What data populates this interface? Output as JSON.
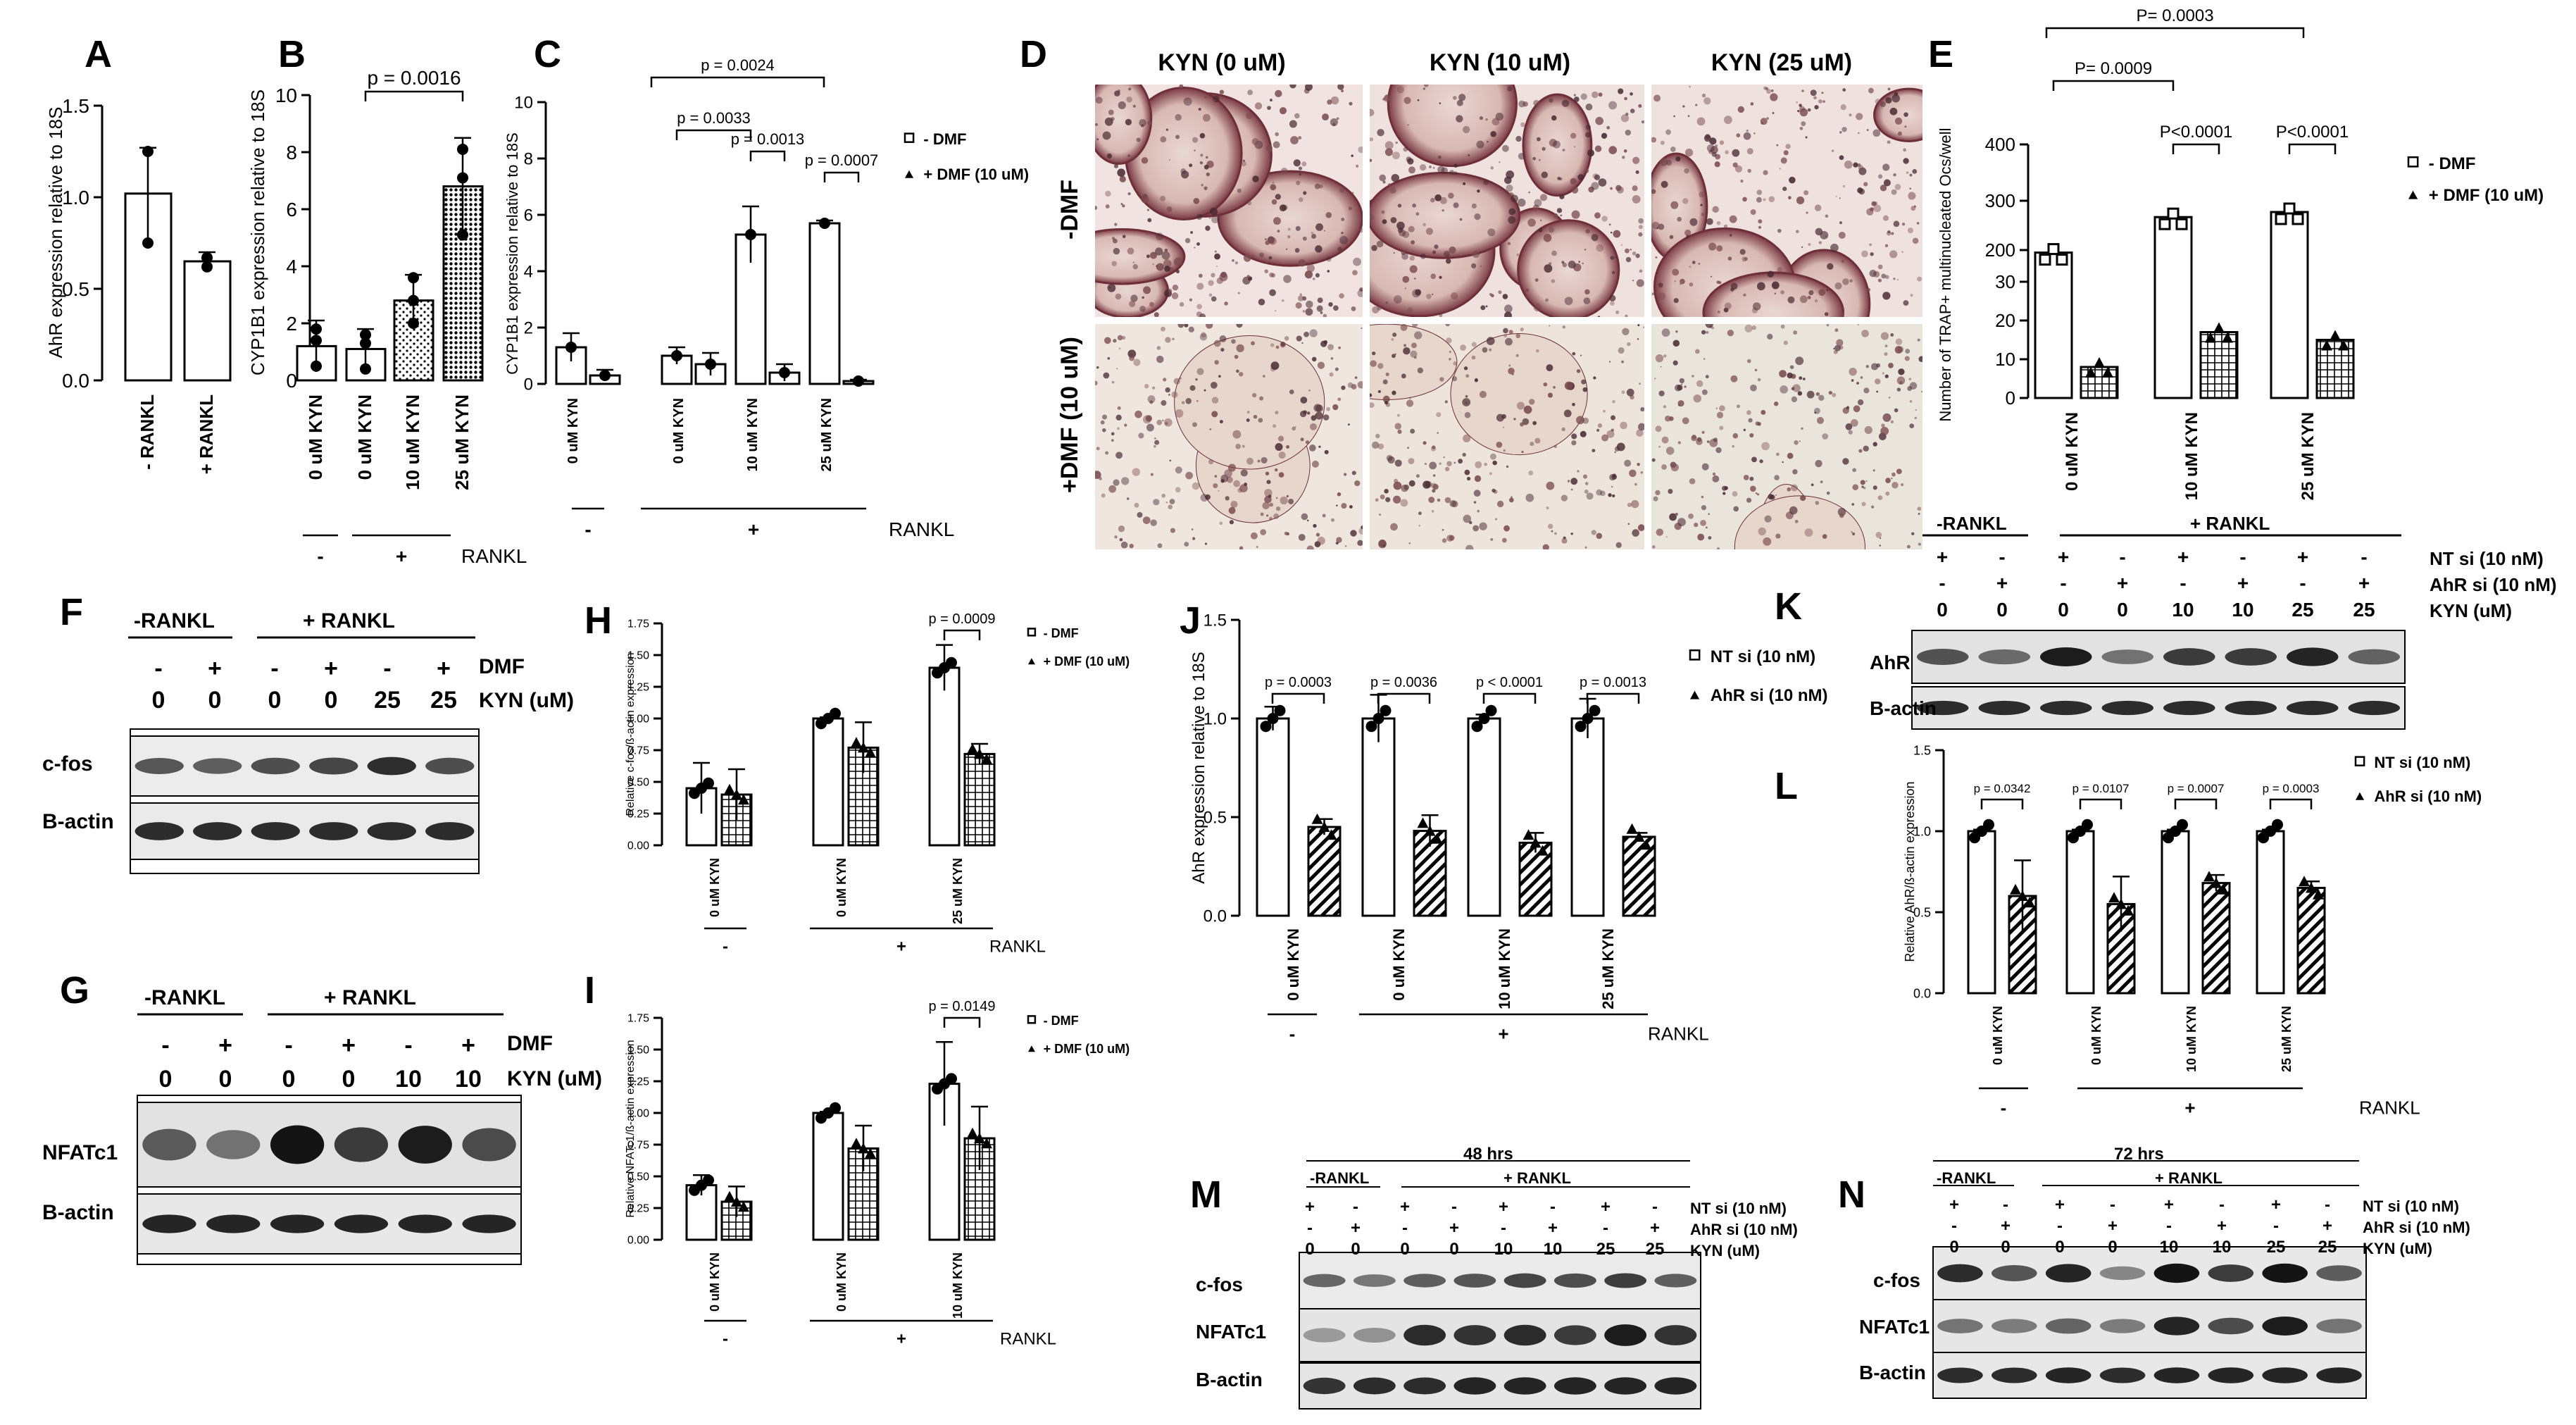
{
  "panels": {
    "A": "A",
    "B": "B",
    "C": "C",
    "D": "D",
    "E": "E",
    "F": "F",
    "G": "G",
    "H": "H",
    "I": "I",
    "J": "J",
    "K": "K",
    "L": "L",
    "M": "M",
    "N": "N"
  },
  "micro": {
    "cols": [
      "KYN (0 uM)",
      "KYN (10 uM)",
      "KYN (25 uM)"
    ],
    "rows": [
      "-DMF",
      "+DMF (10 uM)"
    ]
  },
  "blots": {
    "F": {
      "groups": [
        "-RANKL",
        "+ RANKL"
      ],
      "dmf": [
        "-",
        "+",
        "-",
        "+",
        "-",
        "+"
      ],
      "kyn": [
        "0",
        "0",
        "0",
        "0",
        "25",
        "25"
      ],
      "dmf_label": "DMF",
      "kyn_label": "KYN (uM)",
      "bands": [
        "c-fos",
        "B-actin"
      ]
    },
    "G": {
      "groups": [
        "-RANKL",
        "+ RANKL"
      ],
      "dmf": [
        "-",
        "+",
        "-",
        "+",
        "-",
        "+"
      ],
      "kyn": [
        "0",
        "0",
        "0",
        "0",
        "10",
        "10"
      ],
      "dmf_label": "DMF",
      "kyn_label": "KYN (uM)",
      "bands": [
        "NFATc1",
        "B-actin"
      ]
    },
    "K": {
      "groups": [
        "-RANKL",
        "+ RANKL"
      ],
      "nt": [
        "+",
        "-",
        "+",
        "-",
        "+",
        "-",
        "+",
        "-"
      ],
      "ahr": [
        "-",
        "+",
        "-",
        "+",
        "-",
        "+",
        "-",
        "+"
      ],
      "kyn": [
        "0",
        "0",
        "0",
        "0",
        "10",
        "10",
        "25",
        "25"
      ],
      "nt_label": "NT si (10 nM)",
      "ahr_label": "AhR si (10 nM)",
      "kyn_label": "KYN (uM)",
      "bands": [
        "AhR",
        "B-actin"
      ]
    },
    "M": {
      "title": "48 hrs",
      "groups": [
        "-RANKL",
        "+ RANKL"
      ],
      "nt": [
        "+",
        "-",
        "+",
        "-",
        "+",
        "-",
        "+",
        "-"
      ],
      "ahr": [
        "-",
        "+",
        "-",
        "+",
        "-",
        "+",
        "-",
        "+"
      ],
      "kyn": [
        "0",
        "0",
        "0",
        "0",
        "10",
        "10",
        "25",
        "25"
      ],
      "nt_label": "NT si (10 nM)",
      "ahr_label": "AhR si (10 nM)",
      "kyn_label": "KYN (uM)",
      "bands": [
        "c-fos",
        "NFATc1",
        "B-actin"
      ]
    },
    "N": {
      "title": "72 hrs",
      "groups": [
        "-RANKL",
        "+ RANKL"
      ],
      "nt": [
        "+",
        "-",
        "+",
        "-",
        "+",
        "-",
        "+",
        "-"
      ],
      "ahr": [
        "-",
        "+",
        "-",
        "+",
        "-",
        "+",
        "-",
        "+"
      ],
      "kyn": [
        "0",
        "0",
        "0",
        "0",
        "10",
        "10",
        "25",
        "25"
      ],
      "nt_label": "NT si (10 nM)",
      "ahr_label": "AhR si (10 nM)",
      "kyn_label": "KYN (uM)",
      "bands": [
        "c-fos",
        "NFATc1",
        "B-actin"
      ]
    }
  },
  "chart_data": [
    {
      "id": "A",
      "type": "bar",
      "categories": [
        "- RANKL",
        "+ RANKL"
      ],
      "values": [
        1.02,
        0.65
      ],
      "errors": [
        0.25,
        0.05
      ],
      "points": [
        [
          0.75,
          1.25
        ],
        [
          0.62,
          0.67
        ]
      ],
      "ylabel": "AhR expression relative to 18S",
      "ylim": [
        0,
        1.5
      ],
      "yticks": [
        0.0,
        0.5,
        1.0,
        1.5
      ]
    },
    {
      "id": "B",
      "type": "bar",
      "categories": [
        "0 uM KYN",
        "0 uM KYN",
        "10 uM KYN",
        "25 uM KYN"
      ],
      "values": [
        1.2,
        1.1,
        2.8,
        6.8
      ],
      "errors": [
        0.9,
        0.7,
        0.9,
        1.7
      ],
      "points": [
        [
          0.5,
          1.8,
          1.4
        ],
        [
          0.4,
          1.6,
          1.3
        ],
        [
          2.0,
          3.6,
          2.8
        ],
        [
          5.1,
          8.1,
          7.1
        ]
      ],
      "ylabel": "CYP1B1 expression relative to 18S",
      "ylim": [
        0,
        10
      ],
      "yticks": [
        0,
        2,
        4,
        6,
        8,
        10
      ],
      "groups": [
        {
          "label": "-",
          "cols": [
            0
          ]
        },
        {
          "label": "+",
          "cols": [
            1,
            3
          ]
        }
      ],
      "group_title": "RANKL",
      "sig": [
        {
          "from": 1,
          "to": 3,
          "label": "p = 0.0016"
        }
      ]
    },
    {
      "id": "C",
      "type": "bar",
      "categories": [
        "0 uM KYN",
        "0 uM KYN",
        "10 uM KYN",
        "25 uM KYN"
      ],
      "series": [
        {
          "name": "- DMF",
          "values": [
            1.3,
            1.0,
            5.3,
            5.7
          ],
          "errors": [
            0.5,
            0.3,
            1.0,
            0.1
          ]
        },
        {
          "name": "+ DMF (10 uM)",
          "values": [
            0.3,
            0.7,
            0.4,
            0.1
          ],
          "errors": [
            0.2,
            0.4,
            0.3,
            0.05
          ]
        }
      ],
      "ylabel": "CYP1B1 expression relative to 18S",
      "ylim": [
        0,
        10
      ],
      "yticks": [
        0,
        2,
        4,
        6,
        8,
        10
      ],
      "groups": [
        {
          "label": "-",
          "cols": [
            0
          ]
        },
        {
          "label": "+",
          "cols": [
            1,
            3
          ]
        }
      ],
      "group_title": "RANKL",
      "sig": [
        {
          "from": [
            1,
            0
          ],
          "to": [
            2,
            0
          ],
          "label": "p = 0.0033"
        },
        {
          "from": [
            1,
            0
          ],
          "to": [
            3,
            0
          ],
          "label": "p = 0.0024"
        },
        {
          "from": [
            2,
            0
          ],
          "to": [
            2,
            1
          ],
          "label": "p = 0.0013"
        },
        {
          "from": [
            3,
            0
          ],
          "to": [
            3,
            1
          ],
          "label": "p = 0.0007"
        }
      ]
    },
    {
      "id": "E",
      "type": "bar",
      "categories": [
        "0 uM KYN",
        "10 uM KYN",
        "25 uM KYN"
      ],
      "series": [
        {
          "name": "- DMF",
          "values": [
            195,
            265,
            275
          ]
        },
        {
          "name": "+ DMF (10 uM)",
          "values": [
            8,
            17,
            15
          ]
        }
      ],
      "ylabel": "Number of TRAP+ multinucleated Ocs/well",
      "yticks_upper": [
        200,
        300,
        400
      ],
      "yticks_lower": [
        0,
        10,
        20,
        30
      ],
      "sig": [
        {
          "label": "P= 0.0009"
        },
        {
          "label": "P= 0.0003"
        },
        {
          "label": "P<0.0001"
        },
        {
          "label": "P<0.0001"
        }
      ]
    },
    {
      "id": "H",
      "type": "bar",
      "categories": [
        "0 uM KYN",
        "0 uM KYN",
        "25 uM KYN"
      ],
      "series": [
        {
          "name": "- DMF",
          "values": [
            0.45,
            1.0,
            1.4
          ]
        },
        {
          "name": "+ DMF (10 uM)",
          "values": [
            0.4,
            0.77,
            0.72
          ]
        }
      ],
      "ylabel": "Relative c-fos/ß-actin expression",
      "ylim": [
        0,
        1.75
      ],
      "yticks": [
        0.0,
        0.25,
        0.5,
        0.75,
        1.0,
        1.25,
        1.5,
        1.75
      ],
      "groups": [
        {
          "label": "-"
        },
        {
          "label": "+"
        }
      ],
      "group_title": "RANKL",
      "sig": [
        {
          "label": "p = 0.0009"
        }
      ]
    },
    {
      "id": "I",
      "type": "bar",
      "categories": [
        "0 uM KYN",
        "0 uM KYN",
        "10 uM KYN"
      ],
      "series": [
        {
          "name": "- DMF",
          "values": [
            0.43,
            1.0,
            1.23
          ]
        },
        {
          "name": "+ DMF (10 uM)",
          "values": [
            0.3,
            0.72,
            0.8
          ]
        }
      ],
      "ylabel": "Relative NFATc1/ß-actin expression",
      "ylim": [
        0,
        1.75
      ],
      "yticks": [
        0.0,
        0.25,
        0.5,
        0.75,
        1.0,
        1.25,
        1.5,
        1.75
      ],
      "groups": [
        {
          "label": "-"
        },
        {
          "label": "+"
        }
      ],
      "group_title": "RANKL",
      "sig": [
        {
          "label": "p = 0.0149"
        }
      ]
    },
    {
      "id": "J",
      "type": "bar",
      "categories": [
        "0 uM KYN",
        "0 uM KYN",
        "10 uM KYN",
        "25 uM KYN"
      ],
      "series": [
        {
          "name": "NT si (10 nM)",
          "values": [
            1.0,
            1.0,
            1.0,
            1.0
          ]
        },
        {
          "name": "AhR si (10 nM)",
          "values": [
            0.45,
            0.43,
            0.37,
            0.4
          ]
        }
      ],
      "ylabel": "AhR expression relative to 18S",
      "ylim": [
        0,
        1.5
      ],
      "yticks": [
        0.0,
        0.5,
        1.0,
        1.5
      ],
      "groups": [
        {
          "label": "-"
        },
        {
          "label": "+"
        }
      ],
      "group_title": "RANKL",
      "sig": [
        {
          "label": "p = 0.0003"
        },
        {
          "label": "p = 0.0036"
        },
        {
          "label": "p < 0.0001"
        },
        {
          "label": "p = 0.0013"
        }
      ]
    },
    {
      "id": "L",
      "type": "bar",
      "categories": [
        "0 uM KYN",
        "0 uM KYN",
        "10 uM KYN",
        "25 uM KYN"
      ],
      "series": [
        {
          "name": "NT si (10 nM)",
          "values": [
            1.0,
            1.0,
            1.0,
            1.0
          ]
        },
        {
          "name": "AhR si (10 nM)",
          "values": [
            0.6,
            0.55,
            0.68,
            0.65
          ]
        }
      ],
      "ylabel": "Relative AhR/ß-actin expression",
      "ylim": [
        0,
        1.5
      ],
      "yticks": [
        0.0,
        0.5,
        1.0,
        1.5
      ],
      "groups": [
        {
          "label": "-"
        },
        {
          "label": "+"
        }
      ],
      "group_title": "RANKL",
      "sig": [
        {
          "label": "p = 0.0342"
        },
        {
          "label": "p = 0.0107"
        },
        {
          "label": "p = 0.0007"
        },
        {
          "label": "p = 0.0003"
        }
      ]
    }
  ]
}
